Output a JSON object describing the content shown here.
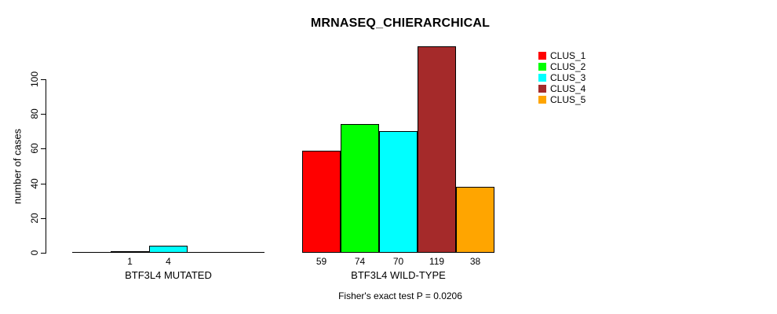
{
  "title": "MRNASEQ_CHIERARCHICAL",
  "footer": "Fisher's exact test P = 0.0206",
  "colors": {
    "background": "#ffffff",
    "axis": "#000000",
    "text": "#000000"
  },
  "chart_data": {
    "type": "bar",
    "title": "MRNASEQ_CHIERARCHICAL",
    "xlabel": "",
    "ylabel": "number of cases",
    "yticks": [
      0,
      20,
      40,
      60,
      80,
      100
    ],
    "ylim": [
      0,
      121
    ],
    "grid": false,
    "legend_position": "right",
    "annotation": "Fisher's exact test P = 0.0206",
    "series": [
      {
        "name": "CLUS_1",
        "color": "#FF0000"
      },
      {
        "name": "CLUS_2",
        "color": "#00FF00"
      },
      {
        "name": "CLUS_3",
        "color": "#00FFFF"
      },
      {
        "name": "CLUS_4",
        "color": "#A52A2A"
      },
      {
        "name": "CLUS_5",
        "color": "#FFA500"
      }
    ],
    "groups": [
      {
        "label": "BTF3L4 MUTATED",
        "values": [
          0,
          1,
          4,
          0,
          0
        ],
        "bar_labels": [
          "",
          "1",
          "4",
          "",
          ""
        ]
      },
      {
        "label": "BTF3L4 WILD-TYPE",
        "values": [
          59,
          74,
          70,
          119,
          38
        ],
        "bar_labels": [
          "59",
          "74",
          "70",
          "119",
          "38"
        ]
      }
    ]
  }
}
